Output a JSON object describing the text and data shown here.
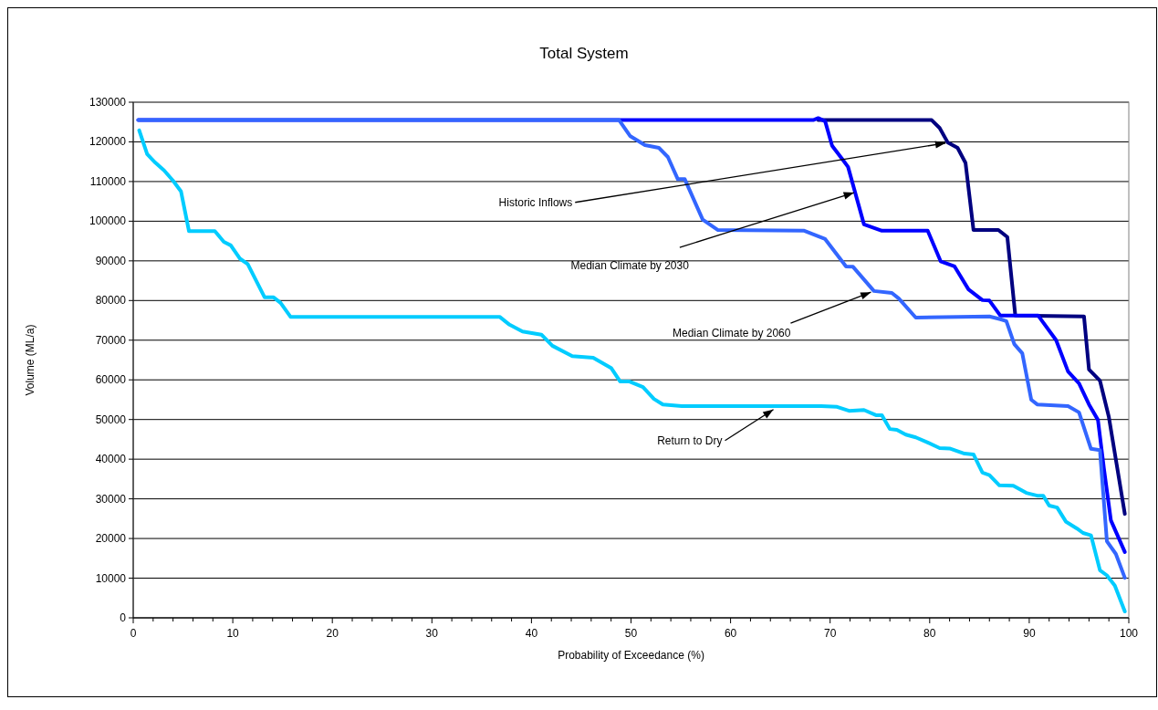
{
  "chart_data": {
    "type": "line",
    "title": "Total System",
    "xlabel": "Probability of Exceedance (%)",
    "ylabel": "Volume (ML/a)",
    "xlim": [
      0,
      100
    ],
    "ylim": [
      0,
      130000
    ],
    "xticks": [
      0,
      {
        "value": 2,
        "label": null
      },
      {
        "value": 4,
        "label": null
      },
      {
        "value": 6,
        "label": null
      },
      {
        "value": 8,
        "label": null
      },
      10,
      {
        "value": 12,
        "label": null
      },
      {
        "value": 14,
        "label": null
      },
      {
        "value": 16,
        "label": null
      },
      {
        "value": 18,
        "label": null
      },
      20,
      {
        "value": 22,
        "label": null
      },
      {
        "value": 24,
        "label": null
      },
      {
        "value": 26,
        "label": null
      },
      {
        "value": 28,
        "label": null
      },
      30,
      {
        "value": 32,
        "label": null
      },
      {
        "value": 34,
        "label": null
      },
      {
        "value": 36,
        "label": null
      },
      {
        "value": 38,
        "label": null
      },
      40,
      {
        "value": 42,
        "label": null
      },
      {
        "value": 44,
        "label": null
      },
      {
        "value": 46,
        "label": null
      },
      {
        "value": 48,
        "label": null
      },
      50,
      {
        "value": 52,
        "label": null
      },
      {
        "value": 54,
        "label": null
      },
      {
        "value": 56,
        "label": null
      },
      {
        "value": 58,
        "label": null
      },
      60,
      {
        "value": 62,
        "label": null
      },
      {
        "value": 64,
        "label": null
      },
      {
        "value": 66,
        "label": null
      },
      {
        "value": 68,
        "label": null
      },
      70,
      {
        "value": 72,
        "label": null
      },
      {
        "value": 74,
        "label": null
      },
      {
        "value": 76,
        "label": null
      },
      {
        "value": 78,
        "label": null
      },
      80,
      {
        "value": 82,
        "label": null
      },
      {
        "value": 84,
        "label": null
      },
      {
        "value": 86,
        "label": null
      },
      {
        "value": 88,
        "label": null
      },
      90,
      {
        "value": 92,
        "label": null
      },
      {
        "value": 94,
        "label": null
      },
      {
        "value": 96,
        "label": null
      },
      {
        "value": 98,
        "label": null
      },
      100
    ],
    "yticks": [
      0,
      10000,
      20000,
      30000,
      40000,
      50000,
      60000,
      70000,
      80000,
      90000,
      100000,
      110000,
      120000,
      130000
    ],
    "grid": "y",
    "marker": "none",
    "line_style": "solid",
    "series": [
      {
        "color": "#000080",
        "x": [
          68.8,
          80.2,
          81,
          81.8,
          82.8,
          83.6,
          84.4,
          86.9,
          87.8,
          88.6,
          95.5,
          96.0,
          97.1,
          98.0,
          99.6
        ],
        "values": [
          125500,
          125500,
          123500,
          119900,
          118500,
          114700,
          97800,
          97800,
          96000,
          76200,
          76000,
          62600,
          59800,
          50600,
          26200
        ]
      },
      {
        "color": "#0000ff",
        "x": [
          0.5,
          48.8,
          68.3,
          68.8,
          69.5,
          70.2,
          71.3,
          71.8,
          73.4,
          75.2,
          79.8,
          81.1,
          82.5,
          83.9,
          85.3,
          86.0,
          87.1,
          90.9,
          92.7,
          93.9,
          95.0,
          96.0,
          96.9,
          97.5,
          98.2,
          99.6
        ],
        "values": [
          125500,
          125500,
          125500,
          126000,
          125200,
          119000,
          115400,
          113700,
          99200,
          97600,
          97600,
          89900,
          88600,
          82800,
          80100,
          80000,
          76200,
          76200,
          70000,
          62100,
          59100,
          53800,
          49900,
          37700,
          24600,
          16600
        ]
      },
      {
        "color": "#3366ff",
        "x": [
          0.5,
          48.8,
          49.9,
          51.4,
          52.8,
          53.7,
          54.7,
          55.4,
          57.2,
          58.7,
          67.4,
          69.5,
          71.6,
          72.3,
          74.4,
          76.2,
          76.9,
          78.6,
          86.0,
          87.1,
          87.7,
          88.5,
          89.3,
          90.2,
          90.8,
          93.9,
          95.0,
          96.2,
          97.1,
          97.8,
          98.7,
          99.6
        ],
        "values": [
          125500,
          125500,
          121500,
          119200,
          118500,
          116200,
          110600,
          110600,
          100400,
          97800,
          97600,
          95500,
          88600,
          88500,
          82400,
          81900,
          80500,
          75700,
          76000,
          75300,
          74800,
          69000,
          66700,
          55000,
          53800,
          53400,
          51800,
          42600,
          42300,
          19300,
          16100,
          10100
        ]
      },
      {
        "color": "#00ccff",
        "x": [
          0.6,
          1.4,
          2.2,
          3.1,
          4.0,
          4.8,
          5.6,
          8.2,
          9.1,
          9.8,
          10.7,
          11.5,
          13.2,
          14.1,
          14.8,
          15.8,
          36.8,
          37.8,
          39.1,
          41.0,
          42.1,
          44.1,
          46.2,
          48.0,
          48.9,
          49.8,
          51.2,
          52.3,
          53.2,
          55.1,
          69.1,
          70.7,
          71.9,
          73.4,
          74.6,
          75.2,
          76.0,
          76.7,
          77.6,
          78.6,
          79.8,
          81.0,
          82.0,
          83.5,
          84.4,
          85.3,
          86.0,
          87.0,
          88.4,
          89.7,
          90.8,
          91.4,
          92.0,
          92.8,
          93.7,
          94.8,
          95.4,
          96.2,
          97.1,
          97.8,
          98.6,
          99.6
        ],
        "values": [
          122900,
          116900,
          114800,
          112800,
          110200,
          107500,
          97500,
          97500,
          94800,
          93900,
          90600,
          89200,
          80800,
          80800,
          79400,
          75900,
          75900,
          73900,
          72200,
          71400,
          68600,
          66000,
          65600,
          63000,
          59600,
          59600,
          58200,
          55200,
          53800,
          53400,
          53400,
          53200,
          52200,
          52400,
          51100,
          51100,
          47600,
          47400,
          46200,
          45500,
          44200,
          42800,
          42700,
          41400,
          41200,
          36600,
          36000,
          33400,
          33300,
          31500,
          30800,
          30800,
          28300,
          27800,
          24200,
          22500,
          21400,
          20800,
          12000,
          10700,
          8100,
          1600
        ]
      }
    ],
    "annotations": [
      {
        "text": "Historic Inflows",
        "x": 81.6,
        "y": 119700
      },
      {
        "text": "Median Climate by 2030",
        "x": 72.4,
        "y": 107200
      },
      {
        "text": "Median Climate by 2060",
        "x": 74.1,
        "y": 82100
      },
      {
        "text": "Return to Dry",
        "x": 64.3,
        "y": 52500
      }
    ]
  }
}
